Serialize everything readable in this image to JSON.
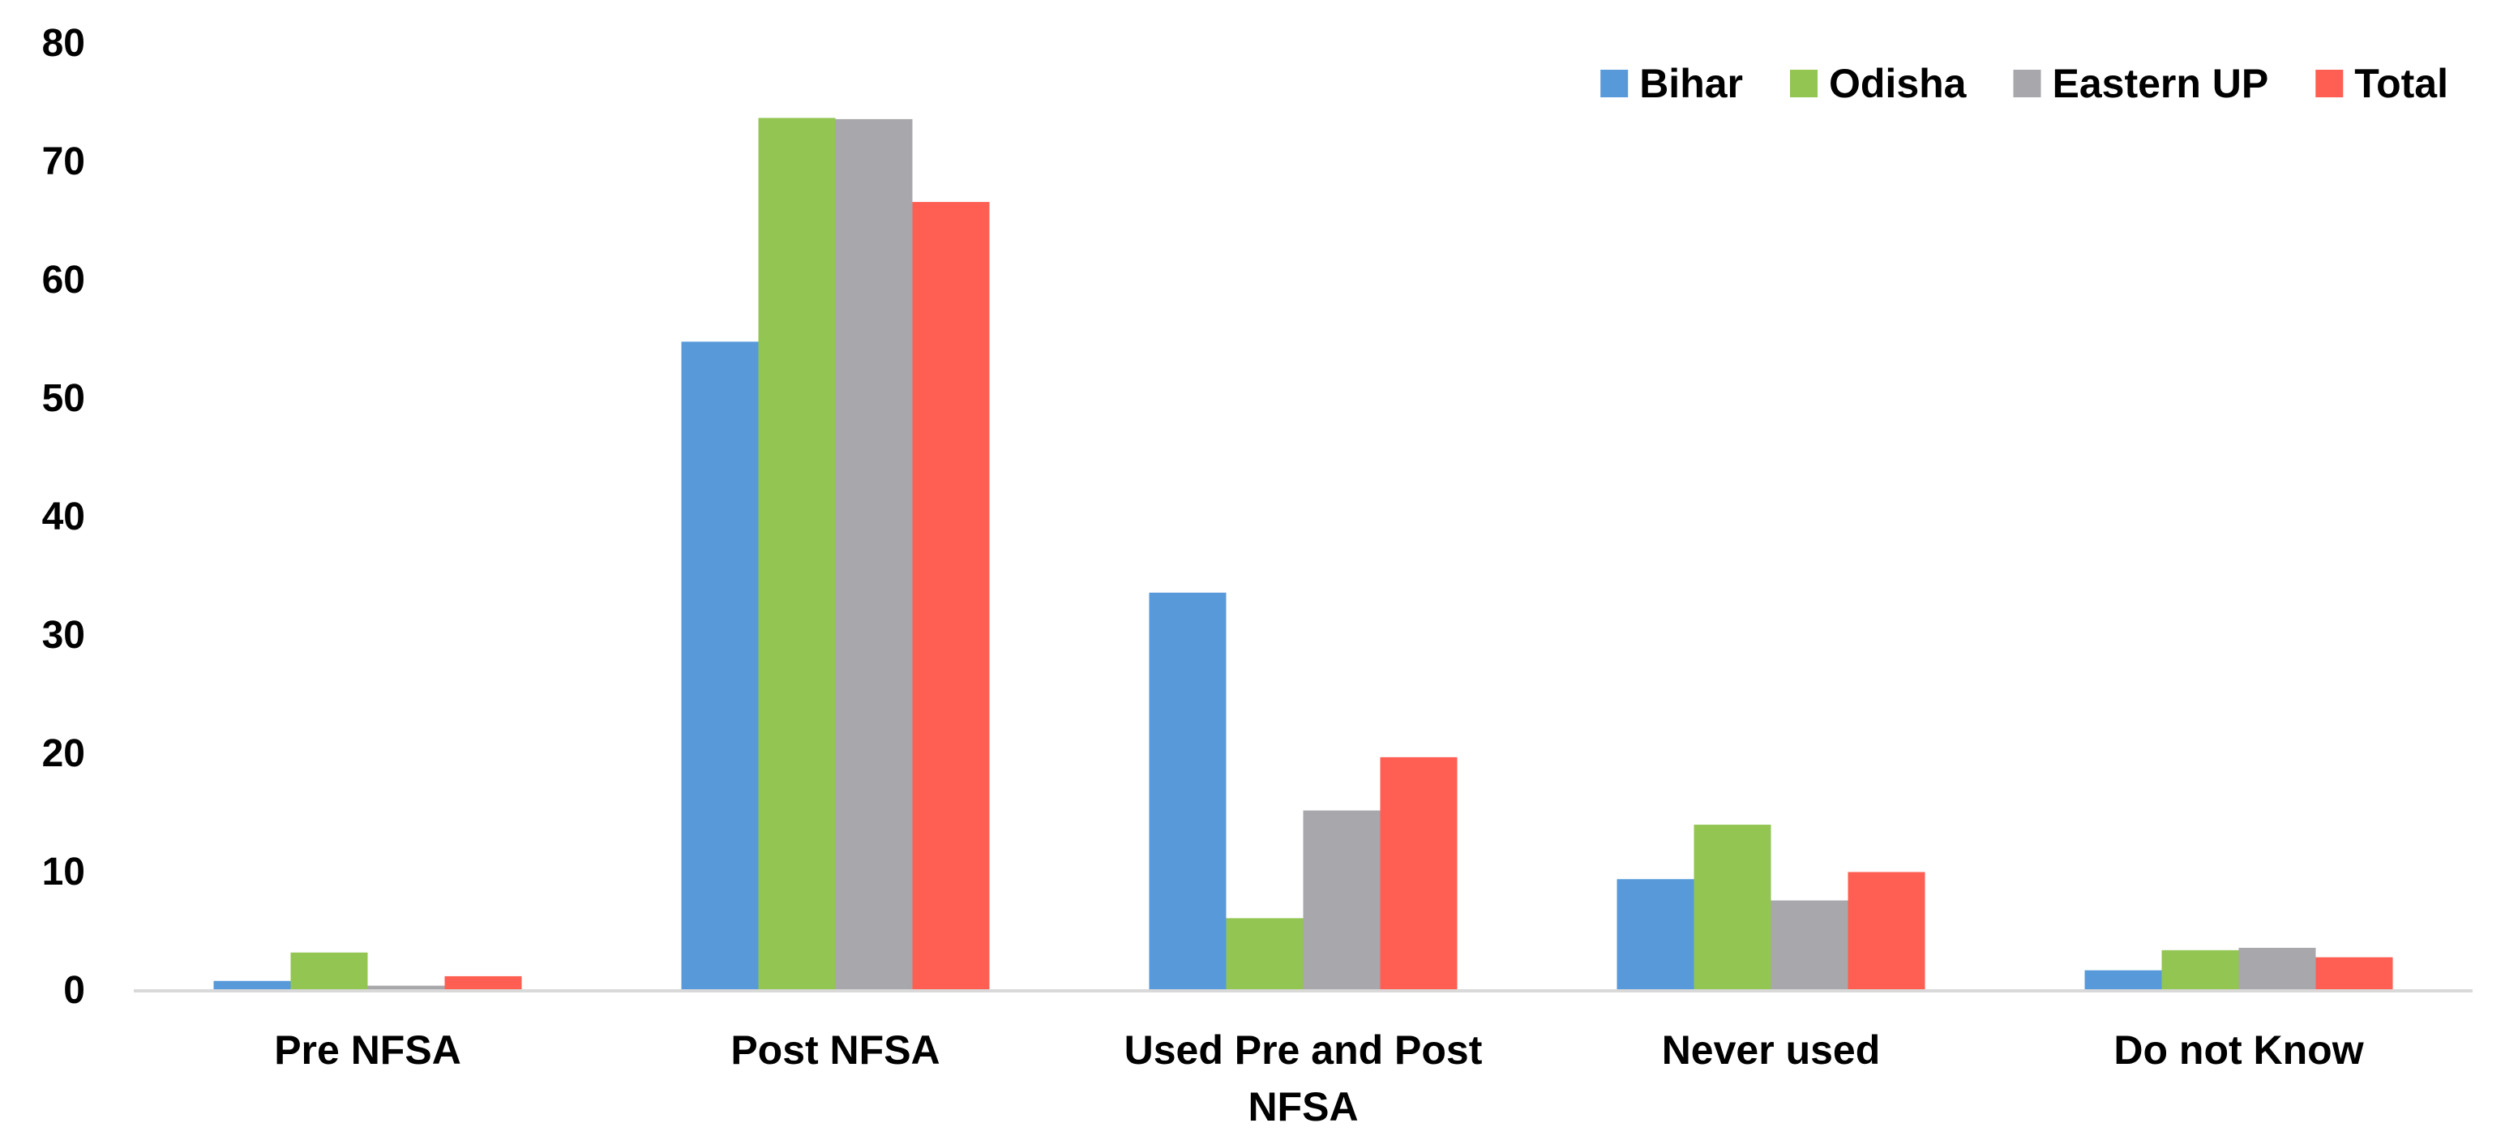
{
  "chart_data": {
    "type": "bar",
    "categories": [
      "Pre NFSA",
      "Post NFSA",
      "Used Pre and Post NFSA",
      "Never used",
      "Do not Know"
    ],
    "category_lines": [
      [
        "Pre NFSA"
      ],
      [
        "Post NFSA"
      ],
      [
        "Used Pre and Post",
        "NFSA"
      ],
      [
        "Never used"
      ],
      [
        "Do not Know"
      ]
    ],
    "series": [
      {
        "name": "Bihar",
        "color": "#5899DA",
        "values": [
          0.7,
          54.7,
          33.5,
          9.3,
          1.6
        ]
      },
      {
        "name": "Odisha",
        "color": "#93C552",
        "values": [
          3.1,
          73.6,
          6.0,
          13.9,
          3.3
        ]
      },
      {
        "name": "Eastern UP",
        "color": "#A8A7AB",
        "values": [
          0.3,
          73.5,
          15.1,
          7.5,
          3.5
        ]
      },
      {
        "name": "Total",
        "color": "#FF5F52",
        "values": [
          1.1,
          66.5,
          19.6,
          9.9,
          2.7
        ]
      }
    ],
    "ylim": [
      0,
      80
    ],
    "yticks": [
      "0",
      "10",
      "20",
      "30",
      "40",
      "50",
      "60",
      "70",
      "80"
    ],
    "title": "",
    "xlabel": "",
    "ylabel": "",
    "legend_position": "top-right",
    "grid": false
  }
}
